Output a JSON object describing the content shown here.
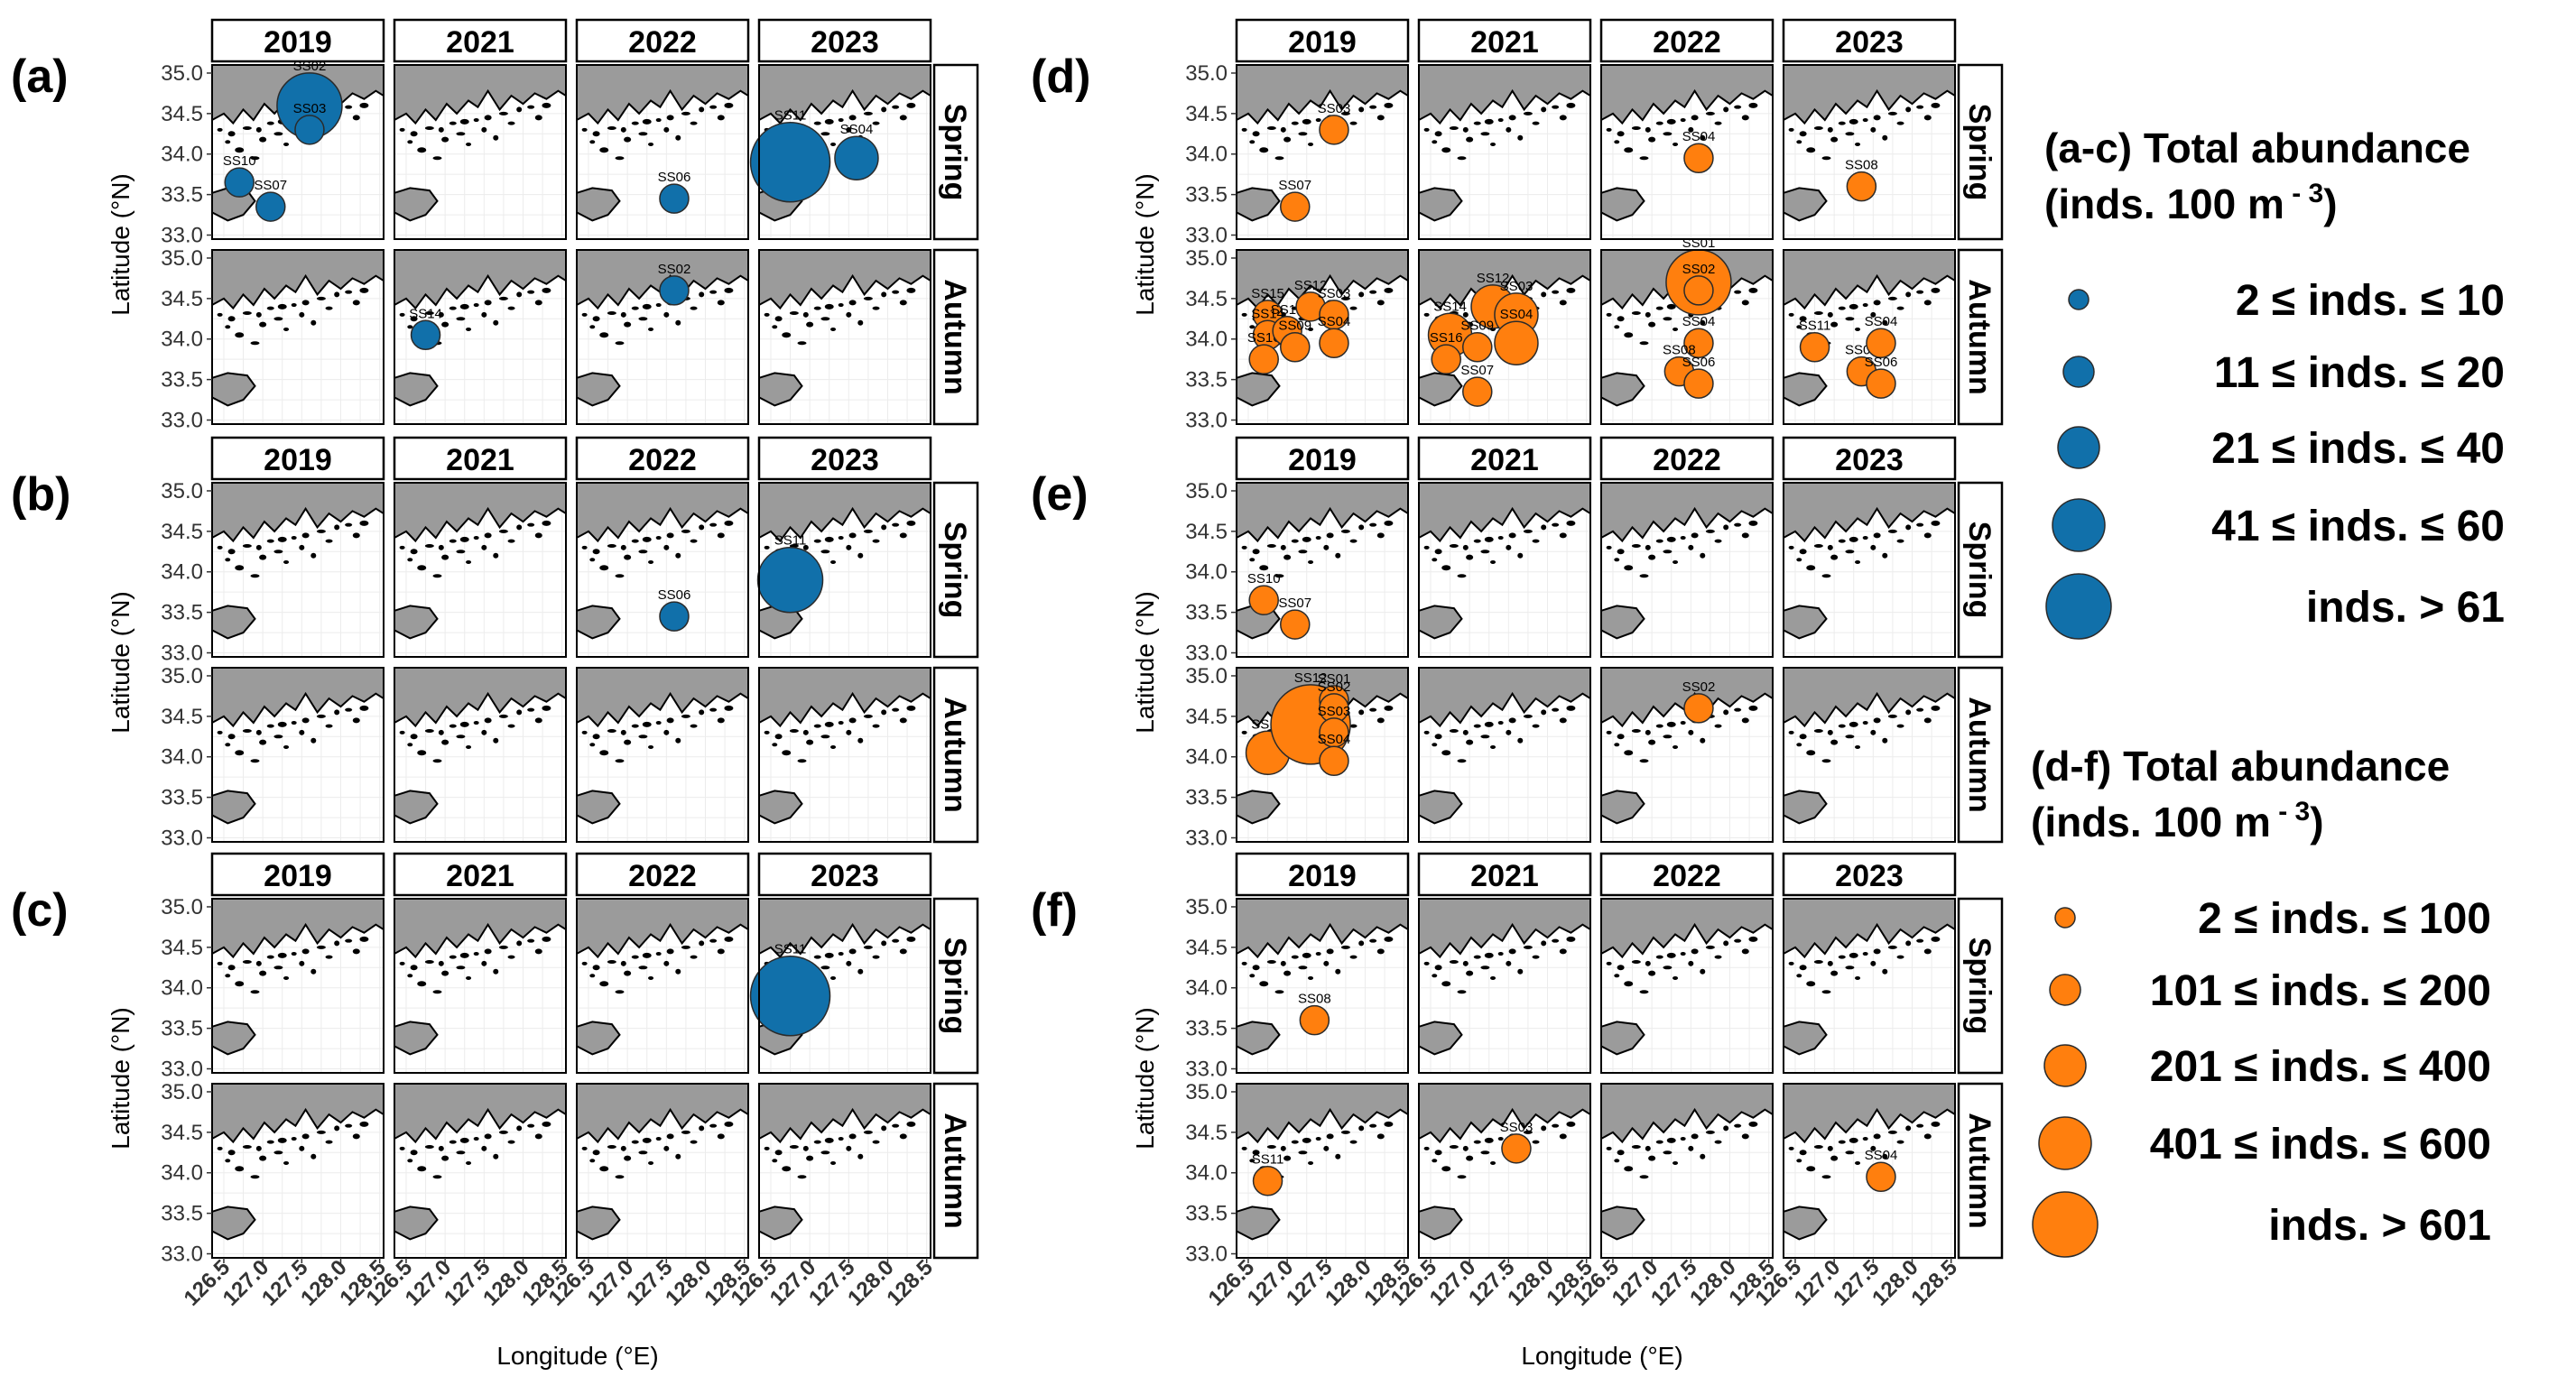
{
  "years": [
    "2019",
    "2021",
    "2022",
    "2023"
  ],
  "seasons": [
    "Spring",
    "Autumn"
  ],
  "axes": {
    "ylabel": "Latitude (°N)",
    "xlabel": "Longitude (°E)",
    "yticks": [
      "35.0",
      "34.5",
      "34.0",
      "33.5",
      "33.0"
    ],
    "xticks": [
      "126.5",
      "127.0",
      "127.5",
      "128.0",
      "128.5"
    ]
  },
  "stations": {
    "SS01": [
      127.6,
      34.7
    ],
    "SS02": [
      127.6,
      34.6
    ],
    "SS03": [
      127.6,
      34.3
    ],
    "SS04": [
      127.6,
      33.95
    ],
    "SS05": [
      127.35,
      34.1
    ],
    "SS06": [
      127.6,
      33.45
    ],
    "SS07": [
      127.1,
      33.35
    ],
    "SS08": [
      127.35,
      33.6
    ],
    "SS09": [
      127.1,
      33.9
    ],
    "SS10": [
      126.7,
      33.65
    ],
    "SS11": [
      126.75,
      33.9
    ],
    "SS12": [
      127.3,
      34.4
    ],
    "SS13": [
      127.0,
      34.1
    ],
    "SS14": [
      126.75,
      34.05
    ],
    "SS15": [
      126.75,
      34.3
    ],
    "SS16": [
      126.7,
      33.75
    ]
  },
  "legends": [
    {
      "title_line1": "(a-c) Total abundance",
      "title_line2": "(inds. 100 m",
      "title_exp": " - 3",
      "title_close": ")",
      "color": "#1170AA",
      "entries": [
        "2 ≤ inds. ≤ 10",
        "11 ≤ inds. ≤ 20",
        "21 ≤ inds. ≤ 40",
        "41 ≤ inds. ≤ 60",
        "inds. > 61"
      ]
    },
    {
      "title_line1": "(d-f) Total abundance",
      "title_line2": "(inds. 100 m",
      "title_exp": " - 3",
      "title_close": ")",
      "color": "#FF7F0E",
      "entries": [
        "2 ≤ inds. ≤ 100",
        "101 ≤ inds. ≤ 200",
        "201 ≤ inds. ≤ 400",
        "401 ≤ inds. ≤ 600",
        "inds. > 601"
      ]
    }
  ],
  "chart_data": [
    {
      "type": "scatter",
      "panel": "(a)",
      "color": "#1170AA",
      "points": [
        {
          "year": "2019",
          "season": "Spring",
          "station": "SS02",
          "size_class": 4
        },
        {
          "year": "2019",
          "season": "Spring",
          "station": "SS03",
          "size_class": 2
        },
        {
          "year": "2019",
          "season": "Spring",
          "station": "SS10",
          "size_class": 2
        },
        {
          "year": "2019",
          "season": "Spring",
          "station": "SS07",
          "size_class": 2
        },
        {
          "year": "2022",
          "season": "Spring",
          "station": "SS06",
          "size_class": 2
        },
        {
          "year": "2023",
          "season": "Spring",
          "station": "SS11",
          "size_class": 5
        },
        {
          "year": "2023",
          "season": "Spring",
          "station": "SS04",
          "size_class": 3
        },
        {
          "year": "2021",
          "season": "Autumn",
          "station": "SS14",
          "size_class": 2
        },
        {
          "year": "2022",
          "season": "Autumn",
          "station": "SS02",
          "size_class": 2
        }
      ]
    },
    {
      "type": "scatter",
      "panel": "(b)",
      "color": "#1170AA",
      "points": [
        {
          "year": "2022",
          "season": "Spring",
          "station": "SS06",
          "size_class": 2
        },
        {
          "year": "2023",
          "season": "Spring",
          "station": "SS11",
          "size_class": 4
        }
      ]
    },
    {
      "type": "scatter",
      "panel": "(c)",
      "color": "#1170AA",
      "points": [
        {
          "year": "2023",
          "season": "Spring",
          "station": "SS11",
          "size_class": 5
        }
      ]
    },
    {
      "type": "scatter",
      "panel": "(d)",
      "color": "#FF7F0E",
      "points": [
        {
          "year": "2019",
          "season": "Spring",
          "station": "SS03",
          "size_class": 2
        },
        {
          "year": "2019",
          "season": "Spring",
          "station": "SS07",
          "size_class": 2
        },
        {
          "year": "2022",
          "season": "Spring",
          "station": "SS04",
          "size_class": 2
        },
        {
          "year": "2023",
          "season": "Spring",
          "station": "SS08",
          "size_class": 2
        },
        {
          "year": "2019",
          "season": "Autumn",
          "station": "SS15",
          "size_class": 2
        },
        {
          "year": "2019",
          "season": "Autumn",
          "station": "SS14",
          "size_class": 2
        },
        {
          "year": "2019",
          "season": "Autumn",
          "station": "SS16",
          "size_class": 2
        },
        {
          "year": "2019",
          "season": "Autumn",
          "station": "SS13",
          "size_class": 2
        },
        {
          "year": "2019",
          "season": "Autumn",
          "station": "SS09",
          "size_class": 2
        },
        {
          "year": "2019",
          "season": "Autumn",
          "station": "SS12",
          "size_class": 2
        },
        {
          "year": "2019",
          "season": "Autumn",
          "station": "SS03",
          "size_class": 2
        },
        {
          "year": "2019",
          "season": "Autumn",
          "station": "SS04",
          "size_class": 2
        },
        {
          "year": "2021",
          "season": "Autumn",
          "station": "SS14",
          "size_class": 3
        },
        {
          "year": "2021",
          "season": "Autumn",
          "station": "SS12",
          "size_class": 3
        },
        {
          "year": "2021",
          "season": "Autumn",
          "station": "SS03",
          "size_class": 3
        },
        {
          "year": "2021",
          "season": "Autumn",
          "station": "SS04",
          "size_class": 3
        },
        {
          "year": "2021",
          "season": "Autumn",
          "station": "SS09",
          "size_class": 2
        },
        {
          "year": "2021",
          "season": "Autumn",
          "station": "SS16",
          "size_class": 2
        },
        {
          "year": "2021",
          "season": "Autumn",
          "station": "SS07",
          "size_class": 2
        },
        {
          "year": "2022",
          "season": "Autumn",
          "station": "SS01",
          "size_class": 4
        },
        {
          "year": "2022",
          "season": "Autumn",
          "station": "SS02",
          "size_class": 2
        },
        {
          "year": "2022",
          "season": "Autumn",
          "station": "SS04",
          "size_class": 2
        },
        {
          "year": "2022",
          "season": "Autumn",
          "station": "SS08",
          "size_class": 2
        },
        {
          "year": "2022",
          "season": "Autumn",
          "station": "SS06",
          "size_class": 2
        },
        {
          "year": "2023",
          "season": "Autumn",
          "station": "SS11",
          "size_class": 2
        },
        {
          "year": "2023",
          "season": "Autumn",
          "station": "SS08",
          "size_class": 2
        },
        {
          "year": "2023",
          "season": "Autumn",
          "station": "SS04",
          "size_class": 2
        },
        {
          "year": "2023",
          "season": "Autumn",
          "station": "SS06",
          "size_class": 2
        }
      ]
    },
    {
      "type": "scatter",
      "panel": "(e)",
      "color": "#FF7F0E",
      "points": [
        {
          "year": "2019",
          "season": "Spring",
          "station": "SS10",
          "size_class": 2
        },
        {
          "year": "2019",
          "season": "Spring",
          "station": "SS07",
          "size_class": 2
        },
        {
          "year": "2019",
          "season": "Autumn",
          "station": "SS14",
          "size_class": 3
        },
        {
          "year": "2019",
          "season": "Autumn",
          "station": "SS12",
          "size_class": 5
        },
        {
          "year": "2019",
          "season": "Autumn",
          "station": "SS01",
          "size_class": 2
        },
        {
          "year": "2019",
          "season": "Autumn",
          "station": "SS02",
          "size_class": 2
        },
        {
          "year": "2019",
          "season": "Autumn",
          "station": "SS03",
          "size_class": 2
        },
        {
          "year": "2019",
          "season": "Autumn",
          "station": "SS04",
          "size_class": 2
        },
        {
          "year": "2022",
          "season": "Autumn",
          "station": "SS02",
          "size_class": 2
        }
      ]
    },
    {
      "type": "scatter",
      "panel": "(f)",
      "color": "#FF7F0E",
      "points": [
        {
          "year": "2019",
          "season": "Spring",
          "station": "SS08",
          "size_class": 2
        },
        {
          "year": "2019",
          "season": "Autumn",
          "station": "SS11",
          "size_class": 2
        },
        {
          "year": "2021",
          "season": "Autumn",
          "station": "SS03",
          "size_class": 2
        },
        {
          "year": "2023",
          "season": "Autumn",
          "station": "SS04",
          "size_class": 2
        }
      ]
    }
  ]
}
